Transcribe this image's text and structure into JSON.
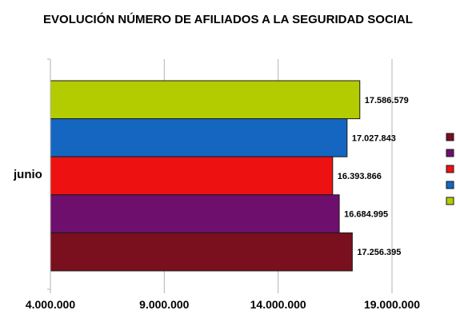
{
  "chart_data": {
    "type": "bar",
    "orientation": "horizontal",
    "title": "EVOLUCIÓN NÚMERO DE AFILIADOS A LA SEGURIDAD SOCIAL",
    "categories": [
      "junio"
    ],
    "series": [
      {
        "values": [
          17586579
        ],
        "label": "17.586.579",
        "color": "#b3cc00"
      },
      {
        "values": [
          17027843
        ],
        "label": "17.027.843",
        "color": "#1466c0"
      },
      {
        "values": [
          16393866
        ],
        "label": "16.393.866",
        "color": "#ee1111"
      },
      {
        "values": [
          16684995
        ],
        "label": "16.684.995",
        "color": "#6e0f6e"
      },
      {
        "values": [
          17256395
        ],
        "label": "17.256.395",
        "color": "#7a0f1e"
      }
    ],
    "legend_colors": [
      "#7a0f1e",
      "#6e0f6e",
      "#ee1111",
      "#1466c0",
      "#b3cc00"
    ],
    "xlim": [
      4000000,
      19000000
    ],
    "x_ticks": [
      {
        "value": 4000000,
        "label": "4.000.000"
      },
      {
        "value": 9000000,
        "label": "9.000.000"
      },
      {
        "value": 14000000,
        "label": "14.000.000"
      },
      {
        "value": 19000000,
        "label": "19.000.000"
      }
    ],
    "grid": true,
    "legend_position": "right"
  }
}
